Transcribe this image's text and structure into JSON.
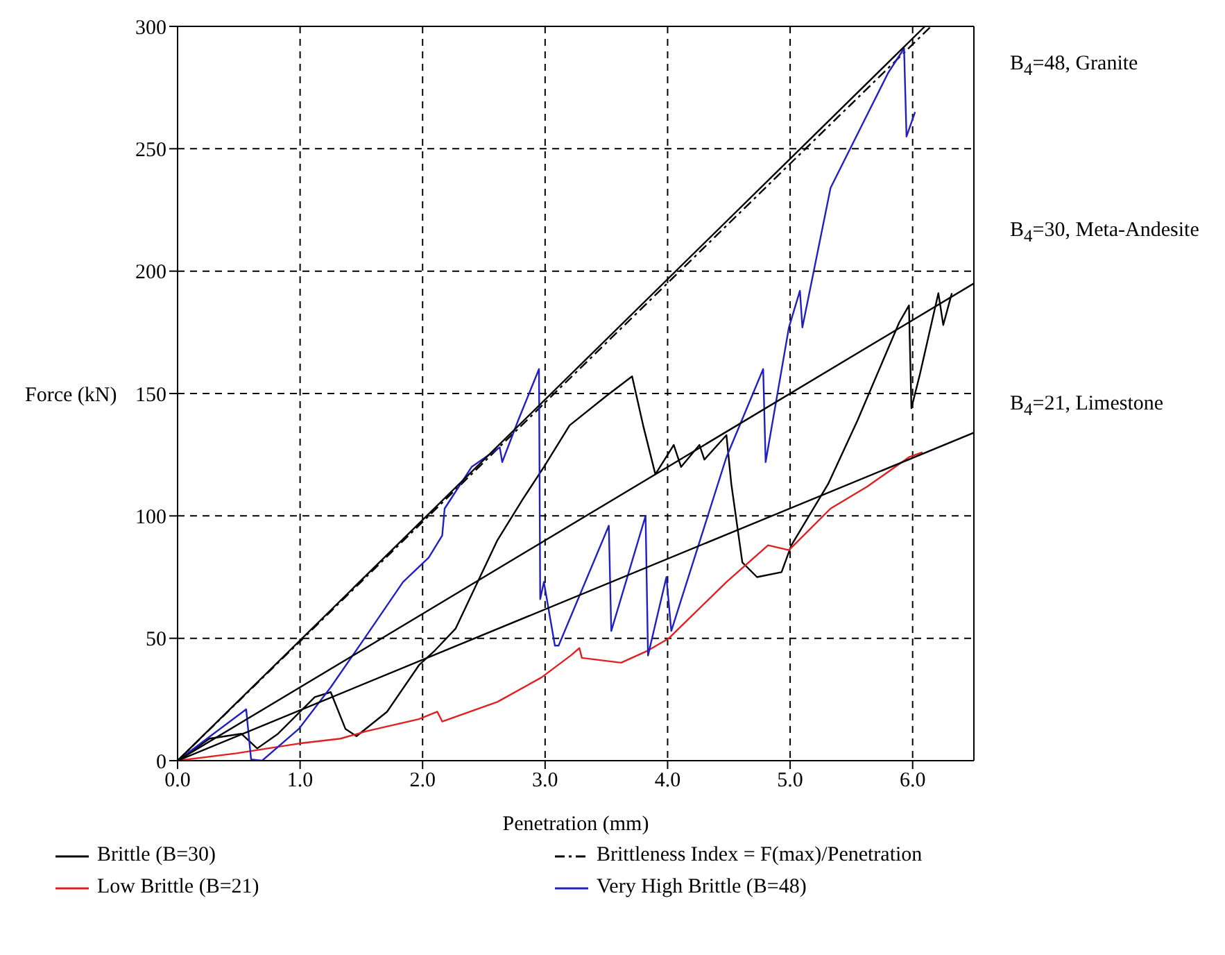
{
  "chart_data": {
    "type": "line",
    "xlabel": "Penetration (mm)",
    "ylabel": "Force (kN)",
    "xlim": [
      0,
      6.5
    ],
    "ylim": [
      0,
      300
    ],
    "xticks": [
      {
        "value": 0,
        "label": "0.0"
      },
      {
        "value": 1,
        "label": "1.0"
      },
      {
        "value": 2,
        "label": "2.0"
      },
      {
        "value": 3,
        "label": "3.0"
      },
      {
        "value": 4,
        "label": "4.0"
      },
      {
        "value": 5,
        "label": "5.0"
      },
      {
        "value": 6,
        "label": "6.0"
      }
    ],
    "yticks": [
      0,
      50,
      100,
      150,
      200,
      250,
      300
    ],
    "grid": true,
    "legend": "bottom",
    "marker": "none",
    "annotations": [
      "B$_{4}$=48, Granite",
      "B$_{4}$=30, Meta-Andesite",
      "B$_{4}$=21, Limestone"
    ],
    "series": [
      {
        "name": "Brittle (B=30)",
        "color": "#000000",
        "line_style": "solid",
        "x": [
          0,
          0.26,
          0.52,
          0.65,
          0.82,
          1.12,
          1.25,
          1.37,
          1.46,
          1.71,
          1.97,
          2.1,
          2.27,
          2.61,
          2.82,
          2.99,
          3.2,
          3.5,
          3.71,
          3.8,
          3.9,
          4.05,
          4.11,
          4.26,
          4.3,
          4.48,
          4.52,
          4.61,
          4.73,
          4.93,
          5.01,
          5.31,
          5.55,
          5.89,
          5.97,
          5.99,
          6.06,
          6.21,
          6.25,
          6.32
        ],
        "values": [
          0,
          9,
          11,
          5,
          11,
          26,
          28,
          13,
          10,
          20,
          39,
          45,
          54,
          90,
          107,
          120,
          137,
          149,
          157,
          137,
          117,
          129,
          120,
          129,
          123,
          133,
          113,
          81,
          75,
          77,
          88,
          113,
          139,
          179,
          186,
          144,
          158,
          191,
          178,
          191
        ]
      },
      {
        "name": "Brittleness Index = F(max)/Penetration",
        "color": "#000000",
        "line_style": "dashed",
        "x": [
          0,
          6.15
        ],
        "values": [
          0,
          300
        ]
      },
      {
        "name": "Low Brittle (B=21)",
        "color": "#e02020",
        "line_style": "solid",
        "x": [
          0,
          0.48,
          0.99,
          1.33,
          1.54,
          1.97,
          2.12,
          2.16,
          2.61,
          2.97,
          3.21,
          3.28,
          3.3,
          3.62,
          3.84,
          4.01,
          4.48,
          4.82,
          4.99,
          5.33,
          5.63,
          5.97,
          6.08
        ],
        "values": [
          0,
          3,
          7,
          9,
          12,
          17,
          20,
          16,
          24,
          34,
          43,
          46,
          42,
          40,
          45,
          50,
          73,
          88,
          86,
          103,
          112,
          124,
          126
        ]
      },
      {
        "name": "Very High Brittle (B=48)",
        "color": "#2020c0",
        "line_style": "solid",
        "x": [
          0,
          0.56,
          0.6,
          0.69,
          0.99,
          1.25,
          1.54,
          1.84,
          2.05,
          2.16,
          2.18,
          2.4,
          2.63,
          2.65,
          2.78,
          2.95,
          2.96,
          2.99,
          3.08,
          3.11,
          3.52,
          3.54,
          3.82,
          3.84,
          3.99,
          4.03,
          4.48,
          4.78,
          4.8,
          4.99,
          5.08,
          5.1,
          5.33,
          5.59,
          5.8,
          5.93,
          5.95,
          6.02
        ],
        "values": [
          0,
          21,
          0.5,
          0,
          13,
          30,
          51,
          73,
          83,
          92,
          103,
          120,
          128,
          122,
          139,
          160,
          66,
          73,
          47,
          47,
          96,
          53,
          100,
          43,
          75,
          53,
          124,
          160,
          122,
          177,
          192,
          177,
          234,
          260,
          281,
          291,
          255,
          265
        ]
      },
      {
        "color": "#000000",
        "line_style": "solid",
        "x": [
          0,
          6.1
        ],
        "values": [
          0,
          300
        ]
      },
      {
        "color": "#000000",
        "line_style": "solid",
        "x": [
          0,
          6.5
        ],
        "values": [
          0,
          195
        ]
      },
      {
        "color": "#000000",
        "line_style": "solid",
        "x": [
          0,
          6.5
        ],
        "values": [
          0,
          134
        ]
      }
    ]
  }
}
